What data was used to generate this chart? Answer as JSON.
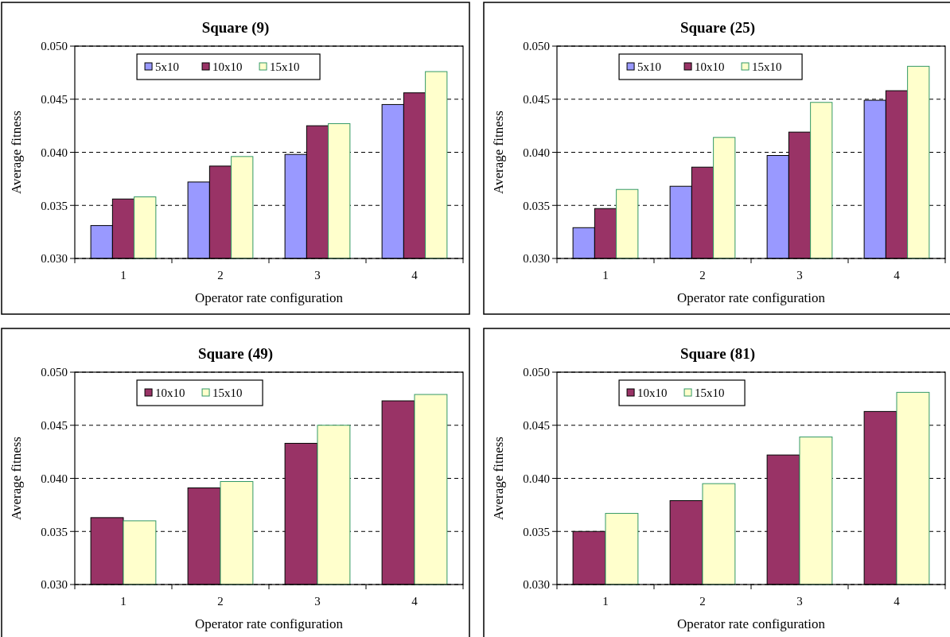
{
  "chart_data": [
    {
      "type": "bar",
      "title": "Square (9)",
      "xlabel": "Operator rate configuration",
      "ylabel": "Average fitness",
      "categories": [
        "1",
        "2",
        "3",
        "4"
      ],
      "series": [
        {
          "name": "5x10",
          "color": "#9999ff",
          "values": [
            0.0331,
            0.0372,
            0.0398,
            0.0445
          ]
        },
        {
          "name": "10x10",
          "color": "#993366",
          "values": [
            0.0356,
            0.0387,
            0.0425,
            0.0456
          ]
        },
        {
          "name": "15x10",
          "color": "#ffffcc",
          "values": [
            0.0358,
            0.0396,
            0.0427,
            0.0476
          ]
        }
      ],
      "ylim": [
        0.03,
        0.05
      ],
      "yticks": [
        {
          "value": 0.03,
          "label": "0.030"
        },
        {
          "value": 0.035,
          "label": "0.035"
        },
        {
          "value": 0.04,
          "label": "0.040"
        },
        {
          "value": 0.045,
          "label": "0.045"
        },
        {
          "value": 0.05,
          "label": "0.050"
        }
      ],
      "grid": "y",
      "legend": "top"
    },
    {
      "type": "bar",
      "title": "Square (25)",
      "xlabel": "Operator rate configuration",
      "ylabel": "Average fitness",
      "categories": [
        "1",
        "2",
        "3",
        "4"
      ],
      "series": [
        {
          "name": "5x10",
          "color": "#9999ff",
          "values": [
            0.0329,
            0.0368,
            0.0397,
            0.0449
          ]
        },
        {
          "name": "10x10",
          "color": "#993366",
          "values": [
            0.0347,
            0.0386,
            0.0419,
            0.0458
          ]
        },
        {
          "name": "15x10",
          "color": "#ffffcc",
          "values": [
            0.0365,
            0.0414,
            0.0447,
            0.0481
          ]
        }
      ],
      "ylim": [
        0.03,
        0.05
      ],
      "yticks": [
        {
          "value": 0.03,
          "label": "0.030"
        },
        {
          "value": 0.035,
          "label": "0.035"
        },
        {
          "value": 0.04,
          "label": "0.040"
        },
        {
          "value": 0.045,
          "label": "0.045"
        },
        {
          "value": 0.05,
          "label": "0.050"
        }
      ],
      "grid": "y",
      "legend": "top"
    },
    {
      "type": "bar",
      "title": "Square (49)",
      "xlabel": "Operator rate configuration",
      "ylabel": "Average fitness",
      "categories": [
        "1",
        "2",
        "3",
        "4"
      ],
      "series": [
        {
          "name": "10x10",
          "color": "#993366",
          "values": [
            0.0363,
            0.0391,
            0.0433,
            0.0473
          ]
        },
        {
          "name": "15x10",
          "color": "#ffffcc",
          "values": [
            0.036,
            0.0397,
            0.045,
            0.0479
          ]
        }
      ],
      "ylim": [
        0.03,
        0.05
      ],
      "yticks": [
        {
          "value": 0.03,
          "label": "0.030"
        },
        {
          "value": 0.035,
          "label": "0.035"
        },
        {
          "value": 0.04,
          "label": "0.040"
        },
        {
          "value": 0.045,
          "label": "0.045"
        },
        {
          "value": 0.05,
          "label": "0.050"
        }
      ],
      "grid": "y",
      "legend": "top"
    },
    {
      "type": "bar",
      "title": "Square (81)",
      "xlabel": "Operator rate configuration",
      "ylabel": "Average fitness",
      "categories": [
        "1",
        "2",
        "3",
        "4"
      ],
      "series": [
        {
          "name": "10x10",
          "color": "#993366",
          "values": [
            0.035,
            0.0379,
            0.0422,
            0.0463
          ]
        },
        {
          "name": "15x10",
          "color": "#ffffcc",
          "values": [
            0.0367,
            0.0395,
            0.0439,
            0.0481
          ]
        }
      ],
      "ylim": [
        0.03,
        0.05
      ],
      "yticks": [
        {
          "value": 0.03,
          "label": "0.030"
        },
        {
          "value": 0.035,
          "label": "0.035"
        },
        {
          "value": 0.04,
          "label": "0.040"
        },
        {
          "value": 0.045,
          "label": "0.045"
        },
        {
          "value": 0.05,
          "label": "0.050"
        }
      ],
      "grid": "y",
      "legend": "top"
    }
  ]
}
